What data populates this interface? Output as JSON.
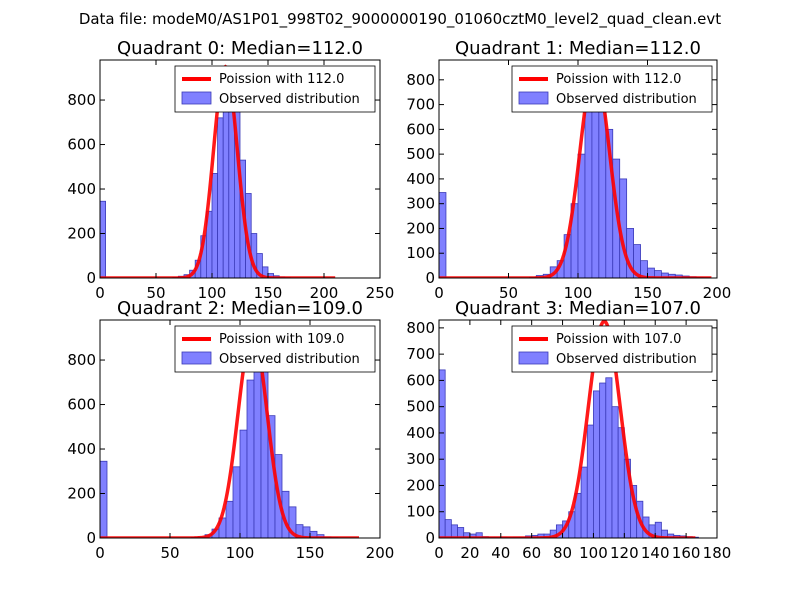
{
  "figure": {
    "suptitle": "Data file: modeM0/AS1P01_998T02_9000000190_01060cztM0_level2_quad_clean.evt"
  },
  "colors": {
    "hist_fill": "#8080ff",
    "hist_edge": "#3a3ab8",
    "poisson_line": "#ff0000"
  },
  "chart_data": [
    {
      "type": "bar",
      "title": "Quadrant 0: Median=112.0",
      "xlim": [
        0,
        250
      ],
      "ylim": [
        0,
        980
      ],
      "xticks": [
        0,
        50,
        100,
        150,
        200,
        250
      ],
      "yticks": [
        0,
        200,
        400,
        600,
        800
      ],
      "legend": [
        "Poission with 112.0",
        "Observed distribution"
      ],
      "bin_width": 5,
      "bins": [
        [
          0,
          345
        ],
        [
          65,
          3
        ],
        [
          70,
          8
        ],
        [
          75,
          15
        ],
        [
          80,
          35
        ],
        [
          85,
          80
        ],
        [
          90,
          190
        ],
        [
          95,
          300
        ],
        [
          100,
          470
        ],
        [
          105,
          720
        ],
        [
          110,
          900
        ],
        [
          115,
          890
        ],
        [
          120,
          760
        ],
        [
          125,
          530
        ],
        [
          130,
          380
        ],
        [
          135,
          200
        ],
        [
          140,
          110
        ],
        [
          145,
          50
        ],
        [
          150,
          20
        ],
        [
          155,
          10
        ],
        [
          160,
          5
        ],
        [
          165,
          2
        ]
      ],
      "poisson": {
        "mu": 112.0,
        "scale": 950,
        "sigma": 10.6,
        "x_start": 0,
        "x_end": 210
      }
    },
    {
      "type": "bar",
      "title": "Quadrant 1: Median=112.0",
      "xlim": [
        0,
        200
      ],
      "ylim": [
        0,
        880
      ],
      "xticks": [
        0,
        50,
        100,
        150,
        200
      ],
      "yticks": [
        0,
        100,
        200,
        300,
        400,
        500,
        600,
        700,
        800
      ],
      "legend": [
        "Poission with 112.0",
        "Observed distribution"
      ],
      "bin_width": 5,
      "bins": [
        [
          0,
          345
        ],
        [
          65,
          3
        ],
        [
          70,
          10
        ],
        [
          75,
          15
        ],
        [
          80,
          45
        ],
        [
          85,
          70
        ],
        [
          90,
          175
        ],
        [
          95,
          300
        ],
        [
          100,
          500
        ],
        [
          105,
          690
        ],
        [
          110,
          840
        ],
        [
          115,
          800
        ],
        [
          120,
          600
        ],
        [
          125,
          480
        ],
        [
          130,
          400
        ],
        [
          135,
          200
        ],
        [
          140,
          135
        ],
        [
          145,
          70
        ],
        [
          150,
          40
        ],
        [
          155,
          30
        ],
        [
          160,
          20
        ],
        [
          165,
          15
        ],
        [
          170,
          12
        ],
        [
          175,
          8
        ],
        [
          180,
          5
        ],
        [
          185,
          3
        ],
        [
          190,
          2
        ]
      ],
      "poisson": {
        "mu": 112.0,
        "scale": 845,
        "sigma": 10.6,
        "x_start": 0,
        "x_end": 196
      }
    },
    {
      "type": "bar",
      "title": "Quadrant 2: Median=109.0",
      "xlim": [
        0,
        200
      ],
      "ylim": [
        0,
        980
      ],
      "xticks": [
        0,
        50,
        100,
        150,
        200
      ],
      "yticks": [
        0,
        200,
        400,
        600,
        800
      ],
      "legend": [
        "Poission with 109.0",
        "Observed distribution"
      ],
      "bin_width": 5,
      "bins": [
        [
          0,
          345
        ],
        [
          65,
          3
        ],
        [
          70,
          5
        ],
        [
          75,
          15
        ],
        [
          80,
          40
        ],
        [
          85,
          90
        ],
        [
          90,
          165
        ],
        [
          95,
          320
        ],
        [
          100,
          485
        ],
        [
          105,
          710
        ],
        [
          110,
          840
        ],
        [
          115,
          775
        ],
        [
          120,
          550
        ],
        [
          125,
          375
        ],
        [
          130,
          210
        ],
        [
          135,
          140
        ],
        [
          140,
          60
        ],
        [
          145,
          50
        ],
        [
          150,
          30
        ],
        [
          155,
          15
        ],
        [
          160,
          5
        ],
        [
          165,
          2
        ]
      ],
      "poisson": {
        "mu": 109.0,
        "scale": 925,
        "sigma": 10.4,
        "x_start": 0,
        "x_end": 185
      }
    },
    {
      "type": "bar",
      "title": "Quadrant 3: Median=107.0",
      "xlim": [
        0,
        180
      ],
      "ylim": [
        0,
        830
      ],
      "xticks": [
        0,
        20,
        40,
        60,
        80,
        100,
        120,
        140,
        160,
        180
      ],
      "yticks": [
        0,
        100,
        200,
        300,
        400,
        500,
        600,
        700,
        800
      ],
      "legend": [
        "Poission with 107.0",
        "Observed distribution"
      ],
      "bin_width": 4,
      "bins": [
        [
          0,
          640
        ],
        [
          4,
          70
        ],
        [
          8,
          50
        ],
        [
          12,
          40
        ],
        [
          16,
          20
        ],
        [
          20,
          15
        ],
        [
          24,
          20
        ],
        [
          28,
          5
        ],
        [
          32,
          3
        ],
        [
          36,
          3
        ],
        [
          40,
          3
        ],
        [
          44,
          2
        ],
        [
          48,
          3
        ],
        [
          52,
          3
        ],
        [
          56,
          8
        ],
        [
          60,
          10
        ],
        [
          64,
          15
        ],
        [
          68,
          15
        ],
        [
          72,
          30
        ],
        [
          76,
          50
        ],
        [
          80,
          65
        ],
        [
          84,
          100
        ],
        [
          88,
          170
        ],
        [
          92,
          270
        ],
        [
          96,
          430
        ],
        [
          100,
          560
        ],
        [
          104,
          590
        ],
        [
          108,
          610
        ],
        [
          112,
          500
        ],
        [
          116,
          420
        ],
        [
          120,
          300
        ],
        [
          124,
          200
        ],
        [
          128,
          140
        ],
        [
          132,
          80
        ],
        [
          136,
          50
        ],
        [
          140,
          60
        ],
        [
          144,
          30
        ],
        [
          148,
          15
        ],
        [
          152,
          10
        ],
        [
          156,
          8
        ],
        [
          160,
          5
        ],
        [
          164,
          3
        ]
      ],
      "poisson": {
        "mu": 107.0,
        "scale": 825,
        "sigma": 10.3,
        "x_start": 0,
        "x_end": 166
      }
    }
  ]
}
